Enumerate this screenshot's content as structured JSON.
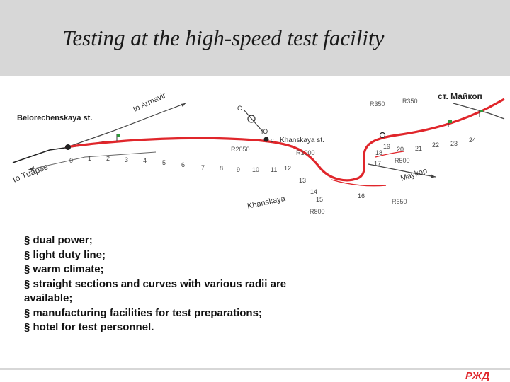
{
  "title": "Testing at the high-speed test facility",
  "map": {
    "labels": {
      "armavir": "to Armavir",
      "belorechenskaya": "Belorechenskaya st.",
      "khanskaya_st": "Khanskaya st.",
      "tuapse": "to Tuapse",
      "maikop_city": "Maykop",
      "maikop_st": "ст. Майкоп",
      "khanskaya": "Khanskaya",
      "c_mark": "C",
      "yu_mark": "Ю",
      "c_small": "c"
    },
    "km_numbers": [
      "0",
      "1",
      "2",
      "3",
      "4",
      "5",
      "6",
      "7",
      "8",
      "9",
      "10",
      "11",
      "12",
      "13",
      "14",
      "15",
      "16",
      "17",
      "18",
      "19",
      "20",
      "21",
      "22",
      "23",
      "24"
    ],
    "radii": {
      "r350a": "R350",
      "r350b": "R350",
      "r2050": "R2050",
      "r1000": "R1000",
      "r500": "R500",
      "r650": "R650",
      "r800": "R800"
    },
    "track_color": "#e0262b"
  },
  "bullets": [
    {
      "mark": "§",
      "text": "dual power;"
    },
    {
      "mark": "§",
      "text": "light duty line;"
    },
    {
      "mark": "§",
      "text": "warm climate;"
    },
    {
      "mark": "§",
      "text": "straight sections and curves with various radii are"
    },
    {
      "mark": "",
      "text": "available;"
    },
    {
      "mark": "§",
      "text": "manufacturing facilities for test preparations;"
    },
    {
      "mark": "§",
      "text": "hotel for test personnel."
    }
  ],
  "logo": {
    "text": "РЖД",
    "color": "#e0262b"
  }
}
